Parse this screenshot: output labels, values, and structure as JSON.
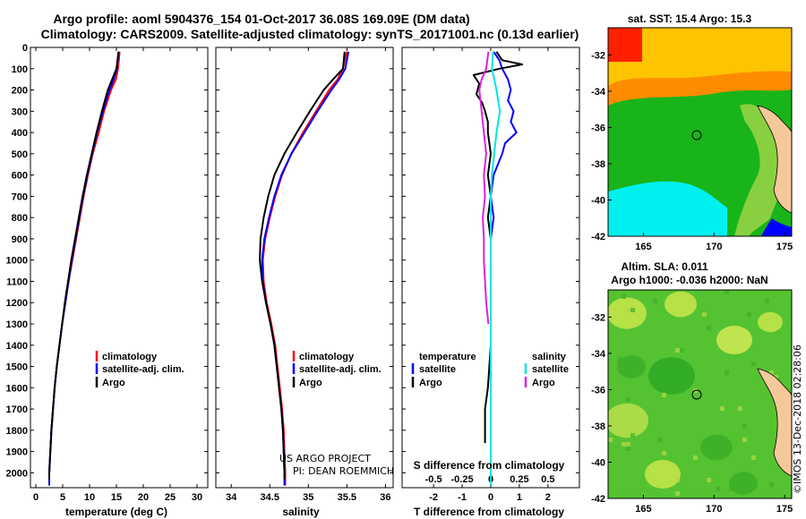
{
  "title_line1": "Argo profile: aoml 5904376_154 01-Oct-2017 36.08S 169.09E (DM data)",
  "title_line2": "Climatology: CARS2009. Satellite-adjusted climatology: synTS_20171001.nc (0.13d earlier)",
  "credit_line1": "US ARGO PROJECT",
  "credit_line2": "PI: DEAN ROEMMICH",
  "colors": {
    "climatology": "#ff0000",
    "satellite": "#0000ff",
    "argo": "#000000",
    "sat_salinity": "#00e5e5",
    "argo_salinity": "#e020e0"
  },
  "chart_data": [
    {
      "type": "line",
      "name": "temperature-profile",
      "xlabel": "temperature (deg C)",
      "ylabel": "",
      "xlim": [
        -1,
        32
      ],
      "ylim": [
        0,
        2070
      ],
      "xticks": [
        0,
        5,
        10,
        15,
        20,
        25,
        30
      ],
      "yticks": [
        0,
        100,
        200,
        300,
        400,
        500,
        600,
        700,
        800,
        900,
        1000,
        1100,
        1200,
        1300,
        1400,
        1500,
        1600,
        1700,
        1800,
        1900,
        2000
      ],
      "legend": [
        "climatology",
        "satellite-adj. clim.",
        "Argo"
      ],
      "series": [
        {
          "name": "climatology",
          "color": "#ff0000",
          "depth": [
            20,
            100,
            150,
            200,
            300,
            400,
            500,
            600,
            700,
            800,
            900,
            1000,
            1100,
            1200,
            1300,
            1400,
            1500,
            1600,
            1700,
            1800,
            1900,
            2000,
            2060
          ],
          "values": [
            15.6,
            15.3,
            14.9,
            14.0,
            12.7,
            11.7,
            10.6,
            9.7,
            8.9,
            8.2,
            7.5,
            6.8,
            6.1,
            5.5,
            4.9,
            4.4,
            3.9,
            3.5,
            3.2,
            2.9,
            2.7,
            2.5,
            2.5
          ]
        },
        {
          "name": "satellite-adj. clim.",
          "color": "#0000ff",
          "depth": [
            20,
            100,
            150,
            200,
            300,
            400,
            500,
            600,
            700,
            800,
            900,
            1000,
            1100,
            1200,
            1300,
            1400,
            1500,
            1600,
            1700,
            1800,
            1900,
            2000,
            2060
          ],
          "values": [
            15.4,
            15.1,
            14.5,
            13.7,
            12.5,
            11.4,
            10.5,
            9.6,
            8.8,
            8.1,
            7.4,
            6.7,
            6.1,
            5.5,
            4.9,
            4.4,
            3.9,
            3.5,
            3.2,
            2.9,
            2.7,
            2.5,
            2.5
          ]
        },
        {
          "name": "Argo",
          "color": "#000000",
          "depth": [
            20,
            100,
            150,
            200,
            300,
            400,
            500,
            600,
            700,
            800,
            900,
            1000,
            1100,
            1200,
            1300,
            1400,
            1500,
            1600,
            1700,
            1800,
            1900,
            2000,
            2030
          ],
          "values": [
            15.4,
            15.0,
            14.2,
            13.4,
            12.3,
            11.3,
            10.4,
            9.5,
            8.7,
            8.0,
            7.3,
            6.6,
            6.0,
            5.4,
            4.9,
            4.4,
            3.9,
            3.5,
            3.2,
            2.9,
            2.7,
            2.5,
            2.5
          ]
        }
      ]
    },
    {
      "type": "line",
      "name": "salinity-profile",
      "xlabel": "salinity",
      "ylabel": "",
      "xlim": [
        33.8,
        36.1
      ],
      "ylim": [
        0,
        2070
      ],
      "xticks": [
        34,
        34.5,
        35,
        35.5,
        36
      ],
      "legend": [
        "climatology",
        "satellite-adj. clim.",
        "Argo"
      ],
      "series": [
        {
          "name": "climatology",
          "color": "#ff0000",
          "depth": [
            20,
            100,
            150,
            200,
            300,
            400,
            500,
            600,
            700,
            800,
            900,
            1000,
            1100,
            1200,
            1300,
            1400,
            1500,
            1600,
            1700,
            1800,
            1900,
            2000,
            2060
          ],
          "values": [
            35.5,
            35.45,
            35.38,
            35.27,
            35.1,
            34.93,
            34.78,
            34.66,
            34.57,
            34.5,
            34.44,
            34.41,
            34.42,
            34.46,
            34.52,
            34.57,
            34.6,
            34.63,
            34.66,
            34.68,
            34.69,
            34.7,
            34.7
          ]
        },
        {
          "name": "satellite-adj. clim.",
          "color": "#0000ff",
          "depth": [
            20,
            100,
            150,
            200,
            300,
            400,
            500,
            600,
            700,
            800,
            900,
            1000,
            1100,
            1200,
            1300,
            1400,
            1500,
            1600,
            1700,
            1800,
            1900,
            2000,
            2060
          ],
          "values": [
            35.52,
            35.48,
            35.4,
            35.3,
            35.12,
            34.95,
            34.78,
            34.65,
            34.56,
            34.49,
            34.43,
            34.4,
            34.41,
            34.45,
            34.51,
            34.56,
            34.59,
            34.62,
            34.65,
            34.67,
            34.68,
            34.69,
            34.69
          ]
        },
        {
          "name": "Argo",
          "color": "#000000",
          "depth": [
            20,
            100,
            150,
            200,
            300,
            400,
            500,
            600,
            700,
            800,
            900,
            1000,
            1100,
            1200,
            1300,
            1400,
            1500,
            1600,
            1700,
            1800,
            1900,
            2000,
            2030
          ],
          "values": [
            35.47,
            35.45,
            35.32,
            35.2,
            35.02,
            34.85,
            34.69,
            34.56,
            34.48,
            34.42,
            34.38,
            34.37,
            34.4,
            34.45,
            34.51,
            34.56,
            34.59,
            34.62,
            34.65,
            34.67,
            34.68,
            34.69,
            34.69
          ]
        }
      ]
    },
    {
      "type": "line",
      "name": "difference-profile",
      "xlabel": "T difference from climatology",
      "xlabel2": "S difference from climatology",
      "xlim": [
        -3.1,
        3.1
      ],
      "ylim": [
        0,
        2070
      ],
      "xticks": [
        -2,
        -1,
        0,
        1,
        2
      ],
      "xticks2": [
        -0.5,
        -0.25,
        0,
        0.25,
        0.5
      ],
      "legend_temperature": {
        "header": "temperature",
        "items": [
          "satellite",
          "Argo"
        ]
      },
      "legend_salinity": {
        "header": "salinity",
        "items": [
          "satellite",
          "Argo"
        ]
      },
      "series": [
        {
          "name": "temperature satellite",
          "color": "#0000ff",
          "depth": [
            20,
            60,
            100,
            150,
            200,
            250,
            300,
            350,
            400,
            450,
            500,
            600,
            700,
            800,
            900,
            1000,
            1200,
            1400,
            1600,
            1800,
            2000,
            2060
          ],
          "values": [
            0.1,
            0.3,
            0.4,
            0.6,
            0.7,
            0.6,
            0.8,
            0.7,
            0.9,
            0.5,
            0.4,
            0.1,
            0.0,
            0.1,
            0.0,
            0.0,
            0.0,
            0.0,
            0.0,
            0.0,
            0.0,
            0.0
          ]
        },
        {
          "name": "temperature Argo",
          "color": "#000000",
          "depth": [
            20,
            60,
            80,
            100,
            130,
            170,
            220,
            260,
            300,
            350,
            400,
            500,
            600,
            700,
            800,
            900,
            1000,
            1200,
            1400,
            1600,
            1700,
            1800,
            1860
          ],
          "values": [
            0.2,
            0.4,
            1.1,
            0.3,
            -0.6,
            -0.4,
            -0.5,
            -0.3,
            -0.2,
            -0.1,
            -0.1,
            0.0,
            -0.1,
            0.0,
            -0.1,
            0.0,
            0.0,
            0.0,
            0.0,
            -0.1,
            -0.2,
            -0.2,
            -0.2
          ]
        },
        {
          "name": "salinity satellite",
          "color": "#00e5e5",
          "depth": [
            20,
            100,
            200,
            300,
            400,
            500,
            600,
            700,
            800,
            1000,
            1200,
            1400,
            1600,
            1800,
            2000,
            2060
          ],
          "values": [
            0.02,
            0.01,
            0.05,
            0.08,
            0.05,
            0.03,
            0.01,
            0.0,
            0.0,
            0.0,
            0.0,
            0.0,
            0.0,
            0.0,
            0.0,
            0.0
          ]
        },
        {
          "name": "salinity Argo",
          "color": "#e020e0",
          "depth": [
            20,
            100,
            150,
            200,
            300,
            400,
            500,
            600,
            700,
            800,
            900,
            1000,
            1100,
            1200,
            1300
          ],
          "values": [
            -0.02,
            -0.04,
            -0.08,
            -0.1,
            -0.08,
            -0.06,
            -0.04,
            -0.06,
            -0.05,
            -0.07,
            -0.06,
            -0.06,
            -0.05,
            -0.04,
            -0.02
          ]
        }
      ]
    },
    {
      "type": "heatmap",
      "name": "sst-map",
      "title": "sat. SST: 15.4 Argo: 15.3",
      "xticks": [
        165,
        170,
        175
      ],
      "yticks": [
        -32,
        -34,
        -36,
        -38,
        -40,
        -42
      ],
      "xlim": [
        162.5,
        175.5
      ],
      "ylim": [
        -42,
        -30.5
      ],
      "float_position": {
        "lon": 169.09,
        "lat": -36.08
      }
    },
    {
      "type": "heatmap",
      "name": "sla-map",
      "title1": "Altim. SLA: 0.011",
      "title2": "Argo h1000: -0.036 h2000: NaN",
      "xticks": [
        165,
        170,
        175
      ],
      "yticks": [
        -32,
        -34,
        -36,
        -38,
        -40,
        -42
      ],
      "xlim": [
        162.5,
        175.5
      ],
      "ylim": [
        -42,
        -30.5
      ],
      "float_position": {
        "lon": 169.09,
        "lat": -36.08
      },
      "side_label": "©IMOS 13-Dec-2018 02:28:06"
    }
  ]
}
